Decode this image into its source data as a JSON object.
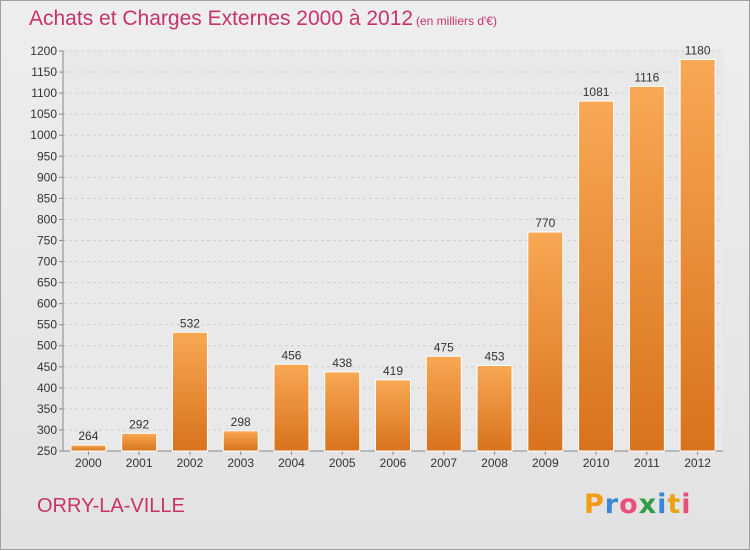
{
  "header": {
    "title": "Achats et Charges Externes 2000 à 2012",
    "unit": "(en milliers d'€)"
  },
  "footer": {
    "place": "ORRY-LA-VILLE",
    "logo": "Proxiti"
  },
  "colors": {
    "accent": "#c8336a",
    "bar_light": "#f8a854",
    "bar_dark": "#d9721c"
  },
  "chart_data": {
    "type": "bar",
    "title": "Achats et Charges Externes 2000 à 2012",
    "subtitle": "(en milliers d'€)",
    "categories": [
      "2000",
      "2001",
      "2002",
      "2003",
      "2004",
      "2005",
      "2006",
      "2007",
      "2008",
      "2009",
      "2010",
      "2011",
      "2012"
    ],
    "values": [
      264,
      292,
      532,
      298,
      456,
      438,
      419,
      475,
      453,
      770,
      1081,
      1116,
      1180
    ],
    "ylim": [
      250,
      1200
    ],
    "yticks": [
      250,
      300,
      350,
      400,
      450,
      500,
      550,
      600,
      650,
      700,
      750,
      800,
      850,
      900,
      950,
      1000,
      1050,
      1100,
      1150,
      1200
    ],
    "grid": true,
    "xlabel": "",
    "ylabel": ""
  }
}
